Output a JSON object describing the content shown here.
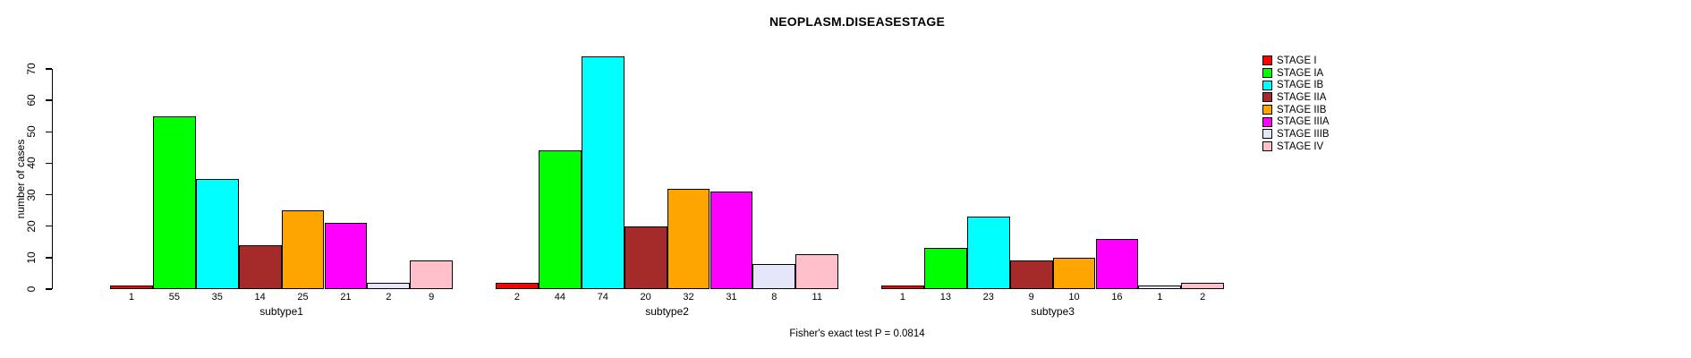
{
  "title": "NEOPLASM.DISEASESTAGE",
  "y_axis": {
    "label": "number of cases",
    "ticks": [
      0,
      10,
      20,
      30,
      40,
      50,
      60,
      70
    ]
  },
  "footer": "Fisher's exact test P = 0.0814",
  "chart_data": {
    "type": "bar",
    "title": "NEOPLASM.DISEASESTAGE",
    "xlabel": "",
    "ylabel": "number of cases",
    "ylim": [
      0,
      70
    ],
    "grid": false,
    "legend_position": "right",
    "bar_value_labels_shown": true,
    "categories": [
      "subtype1",
      "subtype2",
      "subtype3"
    ],
    "series": [
      {
        "name": "STAGE I",
        "color": "#FF0000",
        "values": [
          1,
          2,
          1
        ]
      },
      {
        "name": "STAGE IA",
        "color": "#00FF00",
        "values": [
          55,
          44,
          13
        ]
      },
      {
        "name": "STAGE IB",
        "color": "#00FFFF",
        "values": [
          35,
          74,
          23
        ]
      },
      {
        "name": "STAGE IIA",
        "color": "#A52A2A",
        "values": [
          14,
          20,
          9
        ]
      },
      {
        "name": "STAGE IIB",
        "color": "#FFA500",
        "values": [
          25,
          32,
          10
        ]
      },
      {
        "name": "STAGE IIIA",
        "color": "#FF00FF",
        "values": [
          21,
          31,
          16
        ]
      },
      {
        "name": "STAGE IIIB",
        "color": "#E6E6FA",
        "values": [
          2,
          8,
          1
        ]
      },
      {
        "name": "STAGE IV",
        "color": "#FFC0CB",
        "values": [
          9,
          11,
          2
        ]
      }
    ],
    "annotation": "Fisher's exact test P = 0.0814"
  }
}
